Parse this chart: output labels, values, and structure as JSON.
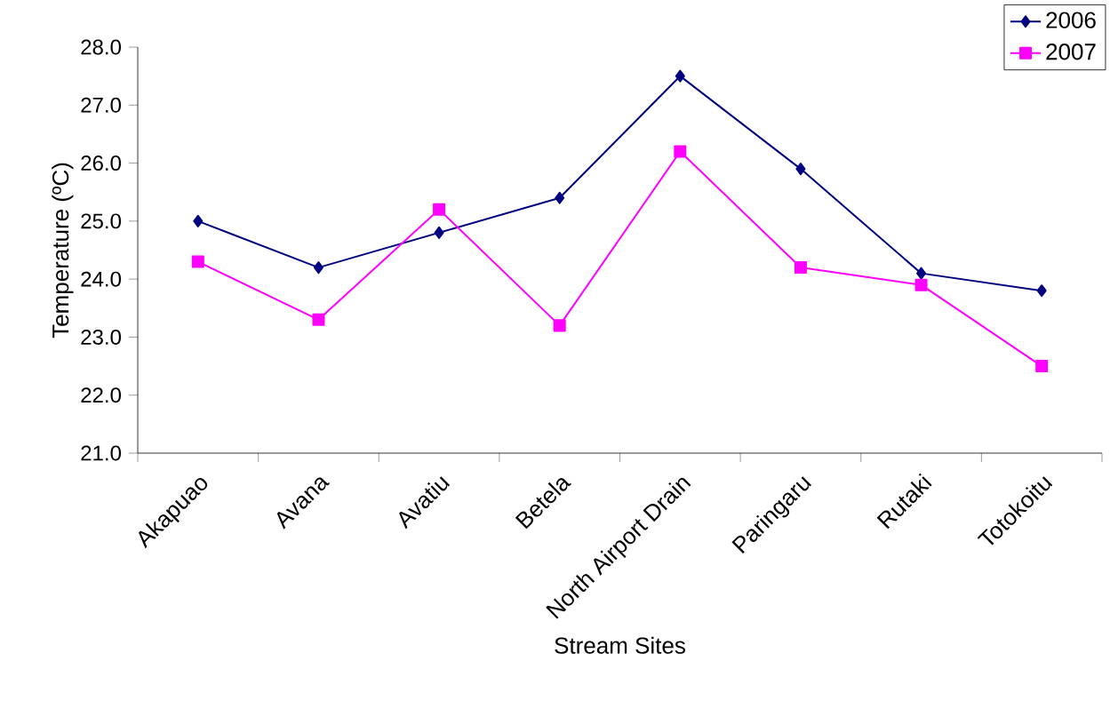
{
  "chart_data": {
    "type": "line",
    "xlabel": "Stream Sites",
    "ylabel": "Temperature (ºC)",
    "categories": [
      "Akapuao",
      "Avana",
      "Avatiu",
      "Betela",
      "North Airport Drain",
      "Paringaru",
      "Rutaki",
      "Totokoitu"
    ],
    "series": [
      {
        "name": "2006",
        "color": "#000080",
        "marker": "diamond",
        "values": [
          25.0,
          24.2,
          24.8,
          25.4,
          27.5,
          25.9,
          24.1,
          23.8
        ]
      },
      {
        "name": "2007",
        "color": "#ff00ff",
        "marker": "square",
        "values": [
          24.3,
          23.3,
          25.2,
          23.2,
          26.2,
          24.2,
          23.9,
          22.5
        ]
      }
    ],
    "ylim": [
      21,
      28
    ],
    "yticks": [
      {
        "value": 21,
        "label": "21.0"
      },
      {
        "value": 22,
        "label": "22.0"
      },
      {
        "value": 23,
        "label": "23.0"
      },
      {
        "value": 24,
        "label": "24.0"
      },
      {
        "value": 25,
        "label": "25.0"
      },
      {
        "value": 26,
        "label": "26.0"
      },
      {
        "value": 27,
        "label": "27.0"
      },
      {
        "value": 28,
        "label": "28.0"
      }
    ],
    "grid": false,
    "legend": "top right",
    "line_style": "solid"
  }
}
